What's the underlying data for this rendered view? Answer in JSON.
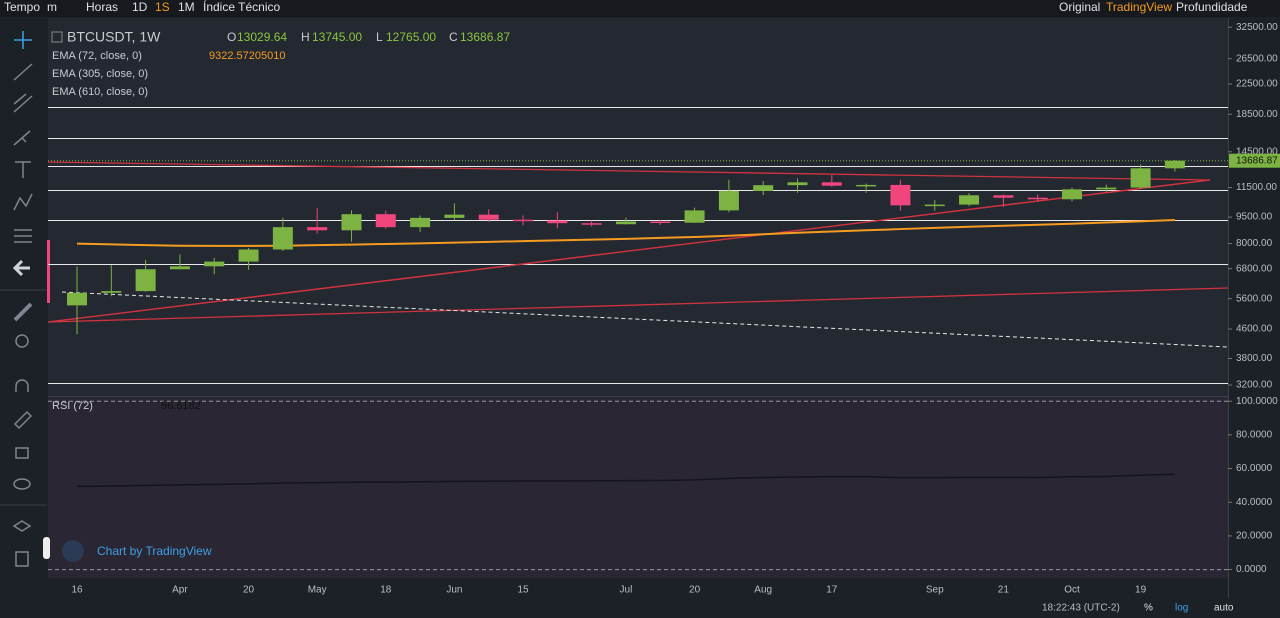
{
  "toolbar": {
    "left": [
      "Tempo",
      "m",
      "Horas",
      "1D",
      "1S",
      "1M",
      "Índice Técnico"
    ],
    "right": [
      "Original",
      "TradingView",
      "Profundidade"
    ]
  },
  "legend": {
    "symbol": "BTCUSDT, 1W",
    "open_key": "O",
    "open": "13029.64",
    "high_key": "H",
    "high": "13745.00",
    "low_key": "L",
    "low": "12765.00",
    "close_key": "C",
    "close": "13686.87",
    "ema1": "EMA (72, close, 0)",
    "ema1_value": "9322.57205010",
    "ema2": "EMA (305, close, 0)",
    "ema3": "EMA (610, close, 0)",
    "rsi": "RSI (72)",
    "rsi_value": "56.6182"
  },
  "watermark": "Chart by TradingView",
  "status": {
    "time": "18:22:43 (UTC-2)",
    "percent": "%",
    "log": "log",
    "auto": "auto"
  },
  "chart_data": [
    {
      "type": "candlestick",
      "categories": [
        "16",
        null,
        null,
        "Apr",
        null,
        "20",
        null,
        "May",
        null,
        "18",
        null,
        "Jun",
        null,
        "15",
        null,
        null,
        "Jul",
        null,
        "20",
        null,
        "Aug",
        null,
        "17",
        null,
        null,
        "Sep",
        null,
        "21",
        null,
        "Oct",
        null,
        "19",
        null
      ],
      "open": [
        5361,
        5816,
        5881,
        6775,
        6905,
        7120,
        7700,
        8900,
        8720,
        9680,
        8900,
        9450,
        9650,
        9340,
        9290,
        9130,
        9070,
        9230,
        9160,
        9920,
        11250,
        11680,
        11900,
        11640,
        11700,
        10250,
        10300,
        10940,
        10770,
        10660,
        11370,
        11500,
        13029.64
      ],
      "high": [
        6900,
        6957,
        7200,
        7459,
        7295,
        7780,
        9460,
        10067,
        9930,
        9900,
        9600,
        10380,
        10000,
        9600,
        9800,
        9300,
        9470,
        9330,
        10100,
        12100,
        12000,
        12200,
        12470,
        11800,
        12100,
        10600,
        11100,
        11000,
        11000,
        11500,
        11720,
        13350,
        13745
      ],
      "low": [
        4442,
        5688,
        5857,
        6777,
        6555,
        6750,
        7620,
        8530,
        8106,
        8800,
        8630,
        9300,
        9200,
        9000,
        8830,
        8940,
        9050,
        9030,
        9150,
        9800,
        10950,
        11120,
        11550,
        11120,
        9900,
        9900,
        10200,
        10140,
        10500,
        10520,
        11180,
        11400,
        12765
      ],
      "close": [
        5816,
        5881,
        6775,
        6905,
        7120,
        7700,
        8900,
        8720,
        9680,
        8900,
        9450,
        9650,
        9340,
        9290,
        9130,
        9070,
        9230,
        9160,
        9920,
        11250,
        11680,
        11900,
        11640,
        11700,
        10250,
        10300,
        10940,
        10770,
        10660,
        11370,
        11500,
        13030,
        13686.87
      ],
      "up_color": "#7cb342",
      "down_color": "#f0457d",
      "series": [
        {
          "name": "EMA (72, close, 0)",
          "color": "#f59b1f",
          "values": [
            8000,
            7960,
            7920,
            7890,
            7880,
            7880,
            7890,
            7920,
            7950,
            7980,
            8010,
            8050,
            8090,
            8130,
            8170,
            8210,
            8250,
            8300,
            8350,
            8420,
            8500,
            8580,
            8650,
            8720,
            8790,
            8860,
            8920,
            8980,
            9040,
            9100,
            9170,
            9240,
            9322.5720501
          ]
        }
      ],
      "last_price": 13686.87,
      "last_price_label": "13686.87",
      "log": true,
      "ylim": [
        3000,
        34500
      ],
      "yticks": [
        {
          "value": 32500,
          "label": "32500.00"
        },
        {
          "value": 26500,
          "label": "26500.00"
        },
        {
          "value": 22500,
          "label": "22500.00"
        },
        {
          "value": 18500,
          "label": "18500.00"
        },
        {
          "value": 14500,
          "label": "14500.00"
        },
        {
          "value": 11500,
          "label": "11500.00"
        },
        {
          "value": 9500,
          "label": "9500.00"
        },
        {
          "value": 8000,
          "label": "8000.00"
        },
        {
          "value": 6800,
          "label": "6800.00"
        },
        {
          "value": 5600,
          "label": "5600.00"
        },
        {
          "value": 4600,
          "label": "4600.00"
        },
        {
          "value": 3800,
          "label": "3800.00"
        },
        {
          "value": 3200,
          "label": "3200.00"
        }
      ]
    },
    {
      "type": "line",
      "series": [
        {
          "name": "RSI (72)",
          "color": "#14141f",
          "values": [
            49.4,
            49.6,
            50.0,
            50.3,
            50.6,
            50.9,
            51.4,
            51.6,
            51.9,
            52.0,
            52.2,
            52.4,
            52.5,
            52.6,
            52.6,
            52.7,
            52.8,
            52.9,
            53.3,
            54.2,
            54.7,
            55.0,
            55.1,
            55.2,
            54.6,
            54.6,
            54.8,
            54.8,
            54.7,
            55.1,
            55.3,
            56.1,
            56.6182
          ]
        }
      ],
      "ylim": [
        -5,
        102.5
      ],
      "yticks": [
        {
          "value": 100,
          "label": "100.0000"
        },
        {
          "value": 80,
          "label": "80.0000"
        },
        {
          "value": 60,
          "label": "60.0000"
        },
        {
          "value": 40,
          "label": "40.0000"
        },
        {
          "value": 20,
          "label": "20.0000"
        },
        {
          "value": 0,
          "label": "0.0000"
        }
      ]
    }
  ]
}
